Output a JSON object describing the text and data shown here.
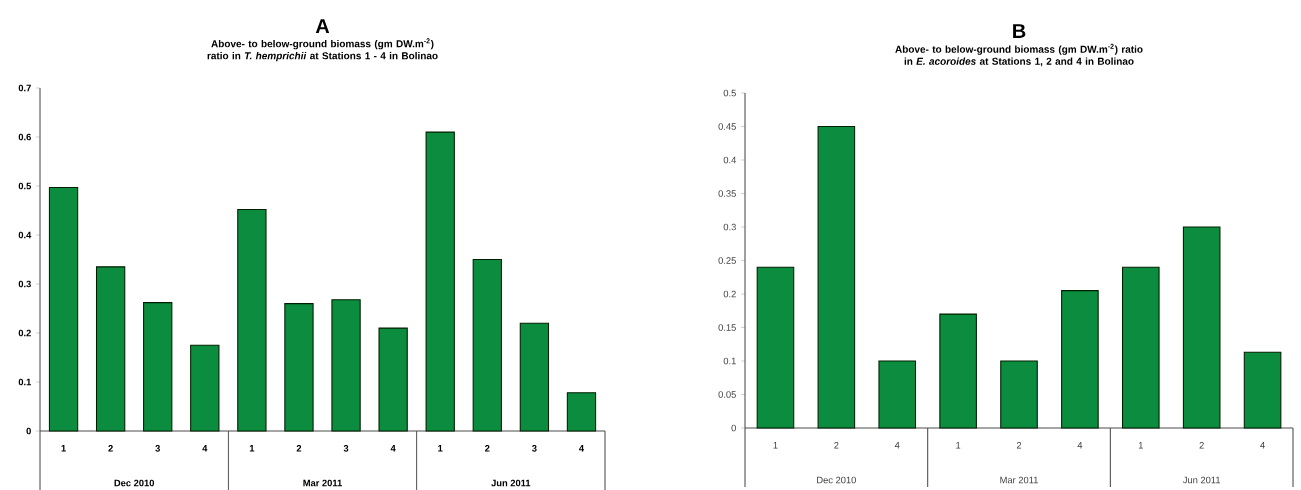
{
  "chart_data": [
    {
      "type": "bar",
      "title": "Above- to below-ground biomass (gm DW.m$^{-2}$) ratio in *T. hemprichii* at Stations 1 - 4 in Bolinao",
      "categories": [
        "1",
        "2",
        "3",
        "4",
        "1",
        "2",
        "3",
        "4",
        "1",
        "2",
        "3",
        "4"
      ],
      "values": [
        0.497,
        0.335,
        0.262,
        0.175,
        0.452,
        0.26,
        0.268,
        0.21,
        0.61,
        0.35,
        0.22,
        0.078
      ],
      "color": "#0b8c3e",
      "ylim": [
        0,
        0.7
      ],
      "yticks": [
        0,
        0.1,
        0.2,
        0.3,
        0.4,
        0.5,
        0.6,
        0.7
      ],
      "annotations": [
        "A",
        "Dec 2010",
        "Mar 2011",
        "Jun 2011"
      ]
    },
    {
      "type": "bar",
      "title": "Above- to below-ground biomass (gm DW.m$^{-2}$) ratio in *E. acoroides* at Stations 1, 2 and 4 in Bolinao",
      "categories": [
        "1",
        "2",
        "4",
        "1",
        "2",
        "4",
        "1",
        "2",
        "4"
      ],
      "values": [
        0.24,
        0.45,
        0.1,
        0.17,
        0.1,
        0.205,
        0.24,
        0.3,
        0.113
      ],
      "color": "#0b8c3e",
      "ylim": [
        0,
        0.5
      ],
      "yticks": [
        0,
        0.05,
        0.1,
        0.15,
        0.2,
        0.25,
        0.3,
        0.35,
        0.4,
        0.45,
        0.5
      ],
      "annotations": [
        "B",
        "Dec 2010",
        "Mar 2011",
        "Jun 2011"
      ]
    }
  ]
}
